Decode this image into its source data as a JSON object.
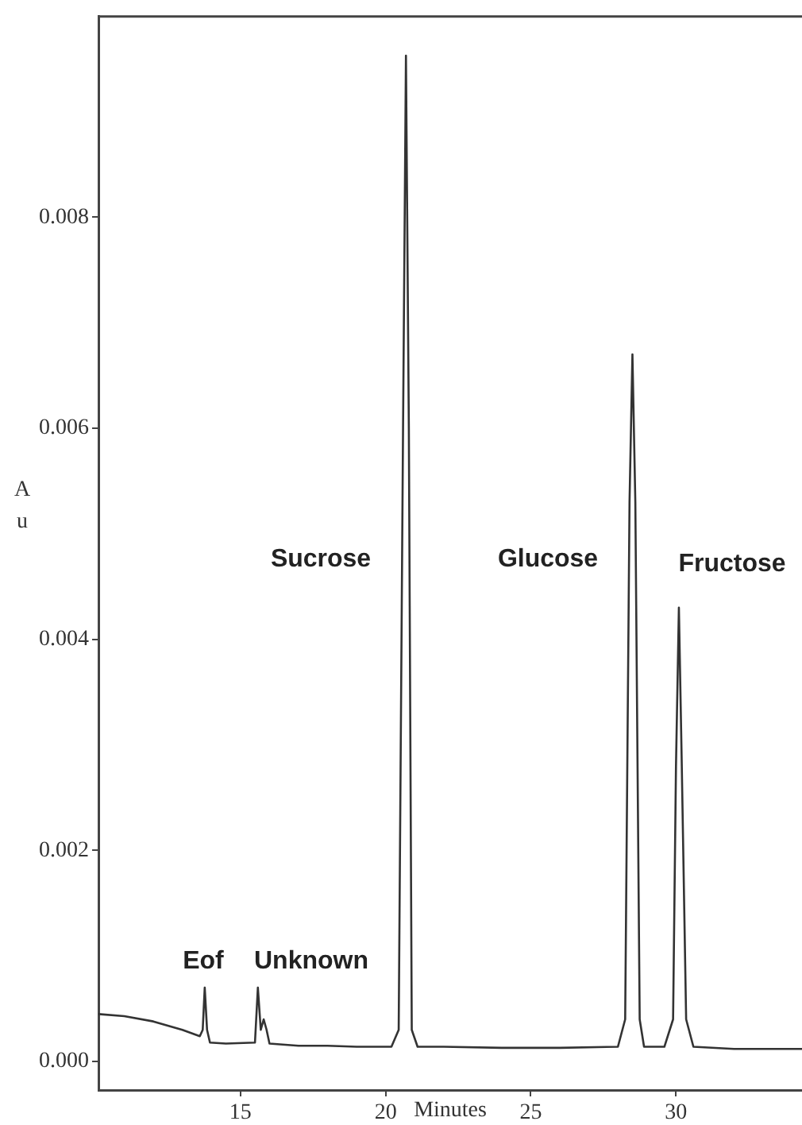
{
  "chart_data": {
    "type": "line",
    "xlabel": "Minutes",
    "ylabel": "Au",
    "x": [
      10.11,
      11,
      12,
      13,
      13.6,
      13.7,
      13.77,
      13.85,
      13.95,
      14.5,
      15.5,
      15.6,
      15.7,
      15.8,
      15.9,
      16.0,
      17,
      18,
      19,
      20.2,
      20.45,
      20.6,
      20.7,
      20.8,
      20.9,
      21.1,
      22,
      24,
      26,
      28,
      28.25,
      28.4,
      28.5,
      28.6,
      28.75,
      28.9,
      29.6,
      29.9,
      30.0,
      30.1,
      30.2,
      30.35,
      30.6,
      32,
      34.34
    ],
    "series": [
      {
        "color": "#333333",
        "values": [
          0.00045,
          0.00043,
          0.00038,
          0.0003,
          0.00024,
          0.0003,
          0.0007,
          0.0003,
          0.00018,
          0.00017,
          0.00018,
          0.0007,
          0.0003,
          0.0004,
          0.0003,
          0.00017,
          0.00015,
          0.00015,
          0.00014,
          0.00014,
          0.0003,
          0.006,
          0.00953,
          0.006,
          0.0003,
          0.00014,
          0.00014,
          0.00013,
          0.00013,
          0.00014,
          0.0004,
          0.0053,
          0.0067,
          0.0053,
          0.0004,
          0.00014,
          0.00014,
          0.0004,
          0.0028,
          0.0043,
          0.0028,
          0.0004,
          0.00014,
          0.00012,
          0.00012
        ]
      }
    ],
    "xlim": [
      10.11,
      34.34
    ],
    "xticks": [
      15,
      20,
      25,
      30
    ],
    "ylim": [
      -0.00027,
      0.0099
    ],
    "yticks": [
      {
        "value": 0,
        "label": "0.000"
      },
      {
        "value": 0.002,
        "label": "0.002"
      },
      {
        "value": 0.004,
        "label": "0.004"
      },
      {
        "value": 0.006,
        "label": "0.006"
      },
      {
        "value": 0.008,
        "label": "0.008"
      }
    ],
    "annotations": [
      "Eof",
      "Unknown",
      "Sucrose",
      "Glucose",
      "Fructose"
    ],
    "grid": false,
    "legend": false,
    "marker": "none",
    "line_style": "solid"
  }
}
